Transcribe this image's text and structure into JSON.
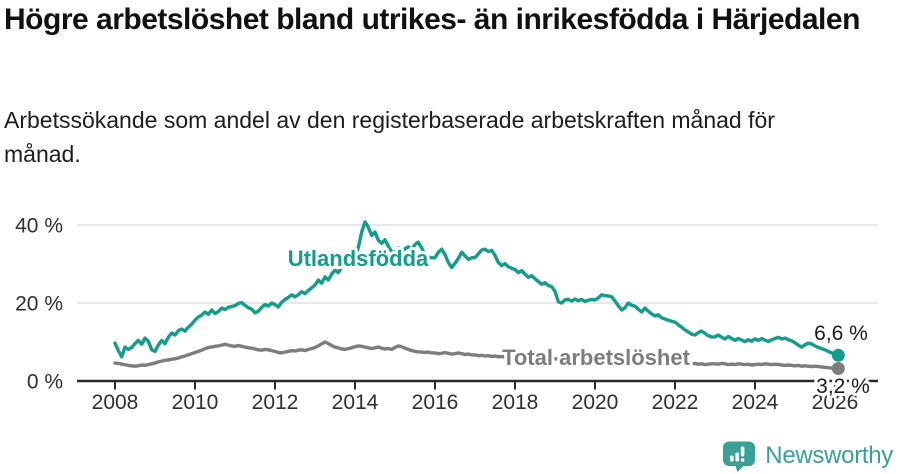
{
  "header": {
    "title": "Högre arbetslöshet bland utrikes- än inrikesfödda i Härjedalen",
    "subtitle": "Arbetssökande som andel av den registerbaserade arbetskraften månad för månad."
  },
  "footer": {
    "brand": "Newsworthy",
    "logo_icon": "newsworthy-barchart-exclamation-pin",
    "brand_color": "#38a096"
  },
  "colors": {
    "background": "#ffffff",
    "title_text": "#111111",
    "body_text": "#1d1d1d",
    "axis": "#2b2b2b",
    "tick_text": "#303030",
    "gridline": "#d9d9d9",
    "series_foreign_born": "#149c8c",
    "series_total": "#7d7d7d",
    "end_label_text": "#1a1a1a"
  },
  "chart_data": {
    "type": "line",
    "title": "Högre arbetslöshet bland utrikes- än inrikesfödda i Härjedalen",
    "subtitle": "Arbetssökande som andel av den registerbaserade arbetskraften månad för månad.",
    "x_unit": "month",
    "x_start": "2008-01",
    "x_end": "2026-02",
    "x_tick_labels": [
      "2008",
      "2010",
      "2012",
      "2014",
      "2016",
      "2018",
      "2020",
      "2022",
      "2024",
      "2026"
    ],
    "y_ticks": [
      {
        "value": 0,
        "label": "0 %"
      },
      {
        "value": 20,
        "label": "20 %"
      },
      {
        "value": 40,
        "label": "40 %"
      }
    ],
    "ylim": [
      0,
      44
    ],
    "grid": "horizontal-only",
    "legend_position": "inline-labels-on-lines",
    "series": [
      {
        "name": "Utlandsfödda",
        "color": "#149c8c",
        "end_label": "6,6 %",
        "last_value": 6.6,
        "values": [
          9.7,
          7.8,
          6.2,
          8.7,
          8.1,
          8.6,
          9.6,
          10.4,
          9.4,
          11.0,
          10.2,
          8.0,
          7.6,
          9.2,
          10.4,
          9.6,
          11.2,
          12.3,
          11.8,
          12.9,
          13.3,
          12.8,
          13.8,
          14.6,
          15.6,
          16.4,
          16.9,
          17.7,
          17.1,
          18.2,
          17.3,
          17.8,
          18.7,
          18.3,
          18.9,
          19.1,
          19.3,
          19.9,
          20.1,
          19.4,
          18.8,
          18.4,
          17.5,
          17.9,
          18.9,
          19.6,
          19.2,
          20.0,
          19.6,
          19.0,
          20.2,
          20.9,
          21.4,
          22.1,
          21.6,
          22.1,
          22.9,
          22.4,
          23.2,
          23.9,
          24.6,
          25.9,
          25.1,
          26.7,
          25.9,
          27.4,
          28.5,
          27.8,
          29.2,
          30.5,
          29.9,
          31.1,
          31.7,
          34.2,
          38.2,
          40.8,
          39.4,
          37.3,
          38.2,
          36.1,
          35.3,
          36.2,
          34.6,
          33.1,
          33.0,
          34.1,
          33.3,
          33.9,
          34.4,
          33.7,
          35.0,
          35.6,
          34.1,
          32.4,
          31.8,
          31.6,
          31.6,
          33.0,
          33.8,
          32.4,
          30.4,
          29.1,
          30.2,
          31.4,
          33.0,
          32.1,
          31.2,
          31.6,
          31.7,
          32.6,
          33.6,
          33.8,
          33.2,
          33.5,
          32.2,
          30.4,
          29.6,
          30.1,
          29.3,
          28.9,
          28.6,
          27.8,
          28.3,
          27.4,
          26.6,
          27.0,
          26.2,
          25.5,
          24.8,
          25.2,
          24.5,
          24.2,
          23.0,
          20.3,
          20.0,
          20.8,
          20.9,
          20.5,
          21.0,
          20.6,
          20.9,
          20.4,
          20.7,
          20.9,
          20.8,
          21.3,
          22.1,
          21.9,
          21.8,
          21.6,
          20.5,
          19.3,
          18.2,
          18.8,
          20.0,
          19.4,
          19.2,
          18.4,
          17.7,
          18.7,
          17.9,
          17.2,
          16.7,
          17.0,
          16.2,
          15.9,
          15.6,
          15.3,
          15.1,
          14.4,
          13.8,
          13.1,
          12.6,
          12.0,
          11.8,
          12.4,
          12.8,
          12.2,
          11.6,
          11.3,
          11.3,
          11.8,
          11.2,
          10.8,
          11.4,
          10.9,
          10.4,
          10.9,
          10.5,
          10.1,
          10.6,
          10.2,
          10.8,
          10.4,
          10.9,
          10.5,
          10.1,
          10.6,
          10.9,
          11.2,
          10.8,
          11.0,
          10.6,
          10.3,
          9.8,
          9.2,
          8.7,
          9.3,
          9.7,
          9.5,
          9.0,
          8.6,
          8.3,
          8.0,
          7.6,
          7.2,
          6.9,
          6.6
        ]
      },
      {
        "name": "Total arbetslöshet",
        "color": "#7d7d7d",
        "end_label": "3,2 %",
        "last_value": 3.2,
        "values": [
          4.6,
          4.5,
          4.3,
          4.2,
          4.0,
          3.9,
          3.8,
          3.9,
          4.1,
          4.0,
          4.2,
          4.4,
          4.6,
          4.9,
          5.1,
          5.3,
          5.4,
          5.6,
          5.7,
          5.9,
          6.2,
          6.4,
          6.7,
          7.0,
          7.3,
          7.6,
          7.9,
          8.3,
          8.6,
          8.7,
          8.9,
          9.0,
          9.2,
          9.4,
          9.2,
          9.0,
          8.9,
          9.1,
          8.9,
          8.7,
          8.5,
          8.4,
          8.2,
          8.0,
          7.9,
          8.1,
          8.0,
          7.8,
          7.6,
          7.3,
          7.2,
          7.4,
          7.6,
          7.8,
          7.7,
          7.9,
          8.0,
          7.8,
          8.1,
          8.3,
          8.6,
          9.0,
          9.5,
          10.0,
          9.6,
          9.1,
          8.7,
          8.5,
          8.2,
          8.1,
          8.3,
          8.5,
          8.8,
          9.0,
          8.9,
          8.7,
          8.5,
          8.3,
          8.5,
          8.7,
          8.4,
          8.2,
          8.3,
          8.1,
          8.6,
          9.0,
          8.8,
          8.4,
          8.1,
          7.8,
          7.6,
          7.5,
          7.4,
          7.3,
          7.4,
          7.2,
          7.2,
          7.0,
          7.1,
          7.3,
          7.1,
          6.9,
          7.0,
          7.2,
          7.0,
          6.8,
          6.9,
          6.7,
          6.7,
          6.5,
          6.6,
          6.4,
          6.5,
          6.3,
          6.4,
          6.2,
          6.3,
          6.1,
          6.2,
          6.3,
          6.2,
          6.1,
          6.2,
          6.0,
          5.9,
          6.0,
          5.8,
          5.7,
          5.8,
          5.6,
          5.7,
          5.8,
          5.7,
          5.6,
          5.7,
          5.5,
          5.6,
          5.4,
          5.5,
          5.3,
          5.4,
          5.5,
          5.4,
          5.6,
          5.7,
          5.9,
          6.2,
          6.1,
          6.0,
          5.9,
          6.0,
          5.8,
          5.7,
          5.6,
          5.5,
          5.4,
          5.3,
          5.2,
          5.1,
          5.0,
          4.9,
          4.8,
          4.7,
          4.8,
          4.6,
          4.5,
          4.6,
          4.4,
          4.5,
          4.4,
          4.3,
          4.4,
          4.3,
          4.4,
          4.5,
          4.3,
          4.4,
          4.2,
          4.3,
          4.4,
          4.4,
          4.3,
          4.5,
          4.4,
          4.2,
          4.3,
          4.2,
          4.4,
          4.3,
          4.2,
          4.3,
          4.1,
          4.2,
          4.3,
          4.2,
          4.4,
          4.3,
          4.2,
          4.3,
          4.2,
          4.1,
          4.0,
          4.1,
          4.0,
          3.9,
          4.0,
          3.8,
          3.9,
          3.8,
          3.7,
          3.8,
          3.7,
          3.6,
          3.5,
          3.4,
          3.3,
          3.2,
          3.2
        ]
      }
    ]
  }
}
